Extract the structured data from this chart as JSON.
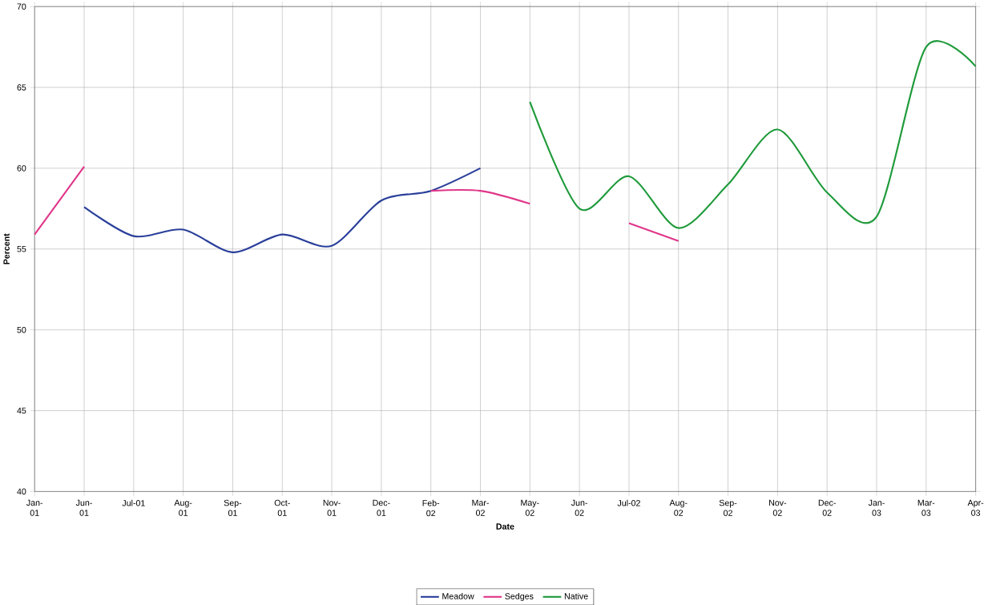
{
  "chart_data": {
    "type": "line",
    "xlabel": "Date",
    "ylabel": "Percent",
    "categories": [
      "Jan-01",
      "Jun-01",
      "Jul-01",
      "Aug-01",
      "Sep-01",
      "Oct-01",
      "Nov-01",
      "Dec-01",
      "Feb-02",
      "Mar-02",
      "May-02",
      "Jun-02",
      "Jul-02",
      "Aug-02",
      "Sep-02",
      "Nov-02",
      "Dec-02",
      "Jan-03",
      "Mar-03",
      "Apr-03"
    ],
    "series": [
      {
        "name": "Meadow",
        "color": "#2a3f9a",
        "values": [
          null,
          57.6,
          55.8,
          56.2,
          54.8,
          55.9,
          55.2,
          58.0,
          58.6,
          60.0,
          null,
          null,
          null,
          null,
          null,
          null,
          null,
          null,
          null,
          null
        ]
      },
      {
        "name": "Sedges",
        "color": "#e0378a",
        "values": [
          55.9,
          60.1,
          null,
          null,
          null,
          null,
          null,
          null,
          58.6,
          58.6,
          57.8,
          null,
          56.6,
          55.5,
          null,
          null,
          null,
          null,
          null,
          null
        ]
      },
      {
        "name": "Native",
        "color": "#1f9a3a",
        "values": [
          null,
          null,
          null,
          null,
          null,
          null,
          null,
          null,
          null,
          null,
          64.1,
          57.5,
          59.5,
          56.3,
          59.0,
          62.4,
          58.5,
          57.0,
          67.5,
          66.3
        ]
      }
    ],
    "ylim": [
      40,
      70
    ],
    "yticks": [
      40,
      45,
      50,
      55,
      60,
      65,
      70
    ],
    "grid": true,
    "legend": "bottom",
    "marker": "none",
    "line_style": "solid"
  }
}
